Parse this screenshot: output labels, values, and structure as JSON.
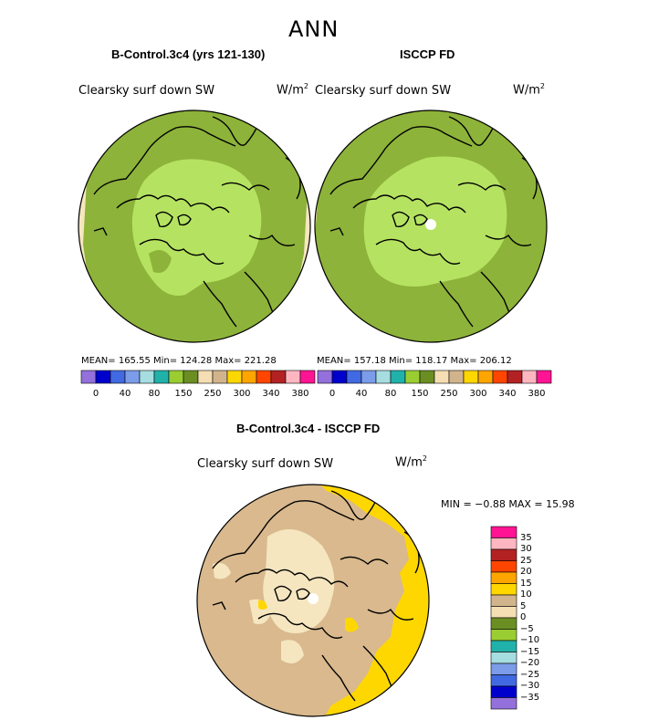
{
  "figure": {
    "title": "ANN"
  },
  "panels": {
    "left": {
      "title": "B-Control.3c4 (yrs 121-130)",
      "variable": "Clearsky surf down SW",
      "units_base": "W/m",
      "units_exp": "2",
      "stats": "MEAN= 165.55   Min= 124.28   Max= 221.28"
    },
    "right": {
      "title": "ISCCP FD",
      "variable": "Clearsky surf down SW",
      "units_base": "W/m",
      "units_exp": "2",
      "stats": "MEAN= 157.18   Min= 118.17   Max= 206.12"
    },
    "diff": {
      "title": "B-Control.3c4 - ISCCP FD",
      "variable": "Clearsky surf down SW",
      "units_base": "W/m",
      "units_exp": "2",
      "stats": "MIN =   −0.88  MAX =   15.98"
    }
  },
  "colorbars": {
    "abs": {
      "colors": [
        "#9370db",
        "#0000cd",
        "#4169e1",
        "#7b9ce8",
        "#a6dde0",
        "#20b2aa",
        "#9acd32",
        "#6b8e23",
        "#f5deb3",
        "#d2b48c",
        "#ffd700",
        "#ffa500",
        "#ff4500",
        "#b22222",
        "#ffb6c1",
        "#ff1493"
      ],
      "labels": [
        "0",
        "40",
        "80",
        "150",
        "250",
        "300",
        "340",
        "380"
      ]
    },
    "diff": {
      "colors": [
        "#ff1493",
        "#ffb6c1",
        "#b22222",
        "#ff4500",
        "#ffa500",
        "#ffd700",
        "#d2b48c",
        "#f5deb3",
        "#6b8e23",
        "#9acd32",
        "#20b2aa",
        "#a6dde0",
        "#7b9ce8",
        "#4169e1",
        "#0000cd",
        "#9370db"
      ],
      "labels": [
        "35",
        "30",
        "25",
        "20",
        "15",
        "10",
        "5",
        "0",
        "−5",
        "−10",
        "−15",
        "−20",
        "−25",
        "−30",
        "−35"
      ]
    }
  },
  "colors": {
    "dark_green": "#8db33a",
    "light_green": "#b5e361",
    "wheat": "#f5e6c0",
    "tan": "#d9b98d",
    "gold": "#ffd700",
    "pole_missing": "#ffffff"
  }
}
